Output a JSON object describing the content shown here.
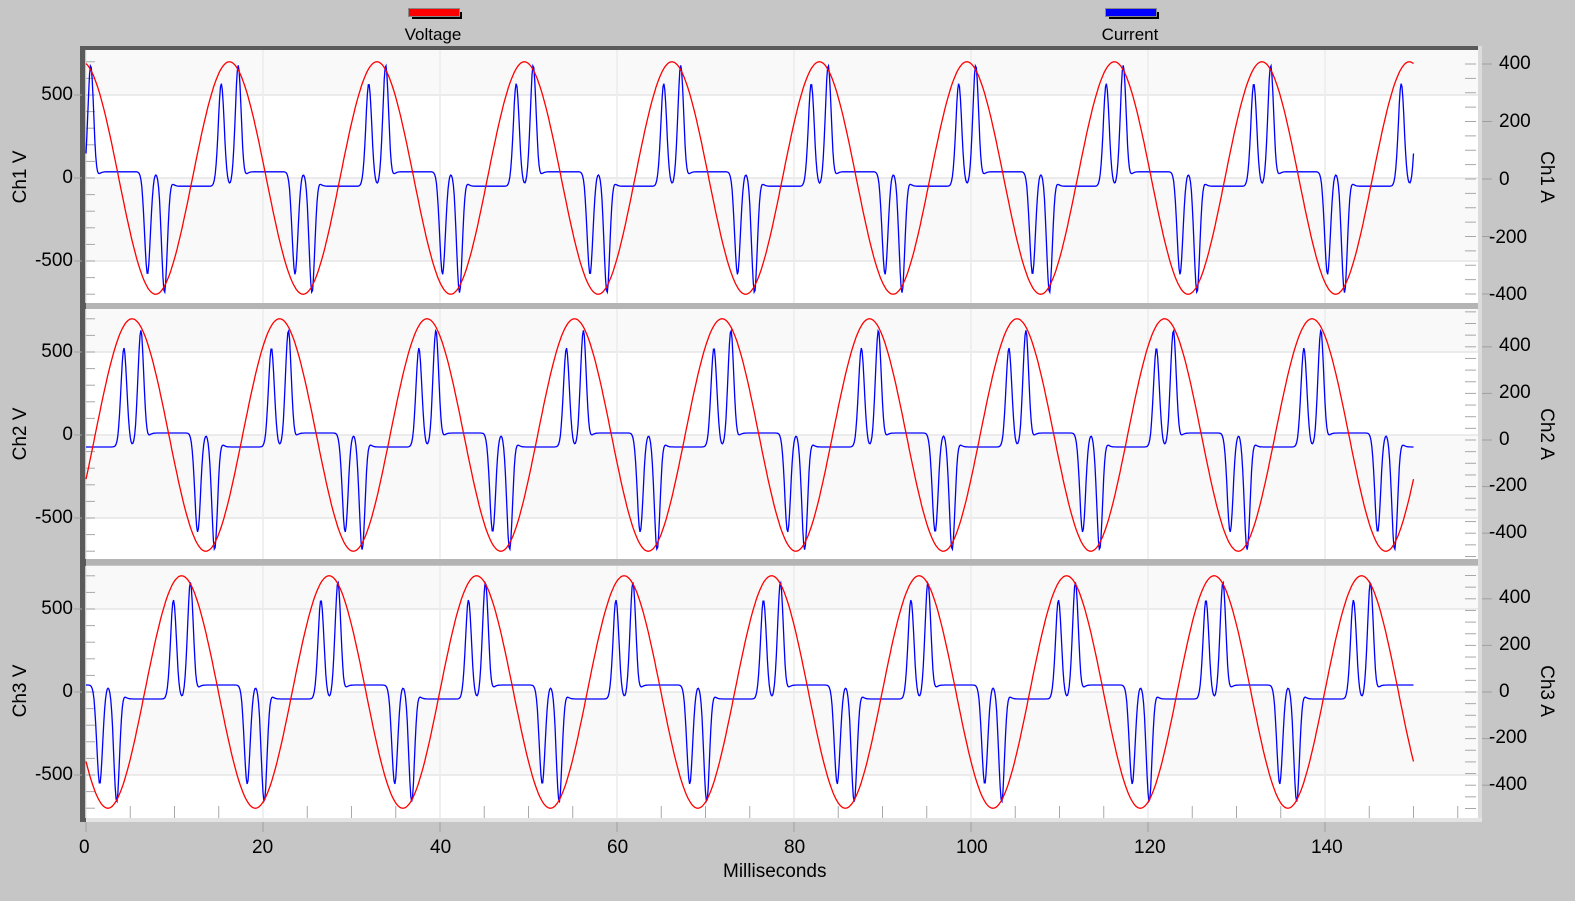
{
  "legend": {
    "items": [
      {
        "label": "Voltage",
        "color": "#ff0000"
      },
      {
        "label": "Current",
        "color": "#0000ff"
      }
    ]
  },
  "xaxis": {
    "label": "Milliseconds",
    "ticks": [
      "0",
      "20",
      "40",
      "60",
      "80",
      "100",
      "120",
      "140"
    ]
  },
  "panels": [
    {
      "left_label": "Ch1 V",
      "right_label": "Ch1 A",
      "left_ticks": [
        "500",
        "0",
        "-500"
      ],
      "right_ticks": [
        "400",
        "200",
        "0",
        "-200",
        "-400"
      ]
    },
    {
      "left_label": "Ch2 V",
      "right_label": "Ch2 A",
      "left_ticks": [
        "500",
        "0",
        "-500"
      ],
      "right_ticks": [
        "400",
        "200",
        "0",
        "-200",
        "-400"
      ]
    },
    {
      "left_label": "Ch3 V",
      "right_label": "Ch3 A",
      "left_ticks": [
        "500",
        "0",
        "-500"
      ],
      "right_ticks": [
        "400",
        "200",
        "0",
        "-200",
        "-400"
      ]
    }
  ],
  "chart_data": {
    "type": "line",
    "title": "",
    "xlabel": "Milliseconds",
    "xlim": [
      0,
      157
    ],
    "x_ticks": [
      0,
      20,
      40,
      60,
      80,
      100,
      120,
      140
    ],
    "data_x_range": [
      0,
      150
    ],
    "legend": [
      "Voltage",
      "Current"
    ],
    "legend_position": "top",
    "grid": true,
    "series_colors": {
      "Voltage": "#ff0000",
      "Current": "#0000ff"
    },
    "panels": [
      {
        "name": "Ch1",
        "ylabel_left": "Ch1 V",
        "ylim_left": [
          -770,
          780
        ],
        "yticks_left": [
          -500,
          0,
          500
        ],
        "ylabel_right": "Ch1 A",
        "ylim_right": [
          -400,
          450
        ],
        "yticks_right": [
          -400,
          -200,
          0,
          200,
          400
        ],
        "voltage": {
          "waveform": "sine",
          "amplitude_V": 700,
          "frequency_Hz": 60,
          "first_peak_ms": 16.2
        },
        "current": {
          "waveform": "double-hump nonlinear load (rectifier)",
          "peak_A": 420,
          "frequency_Hz": 60
        }
      },
      {
        "name": "Ch2",
        "ylabel_left": "Ch2 V",
        "ylim_left": [
          -770,
          780
        ],
        "yticks_left": [
          -500,
          0,
          500
        ],
        "ylabel_right": "Ch2 A",
        "ylim_right": [
          -500,
          550
        ],
        "yticks_right": [
          -400,
          -200,
          0,
          200,
          400
        ],
        "voltage": {
          "waveform": "sine",
          "amplitude_V": 700,
          "frequency_Hz": 60,
          "first_peak_ms": 5.2
        },
        "current": {
          "waveform": "double-hump nonlinear load (rectifier)",
          "peak_A": 500,
          "frequency_Hz": 60
        }
      },
      {
        "name": "Ch3",
        "ylabel_left": "Ch3 V",
        "ylim_left": [
          -770,
          780
        ],
        "yticks_left": [
          -500,
          0,
          500
        ],
        "ylabel_right": "Ch3 A",
        "ylim_right": [
          -500,
          550
        ],
        "yticks_right": [
          -400,
          -200,
          0,
          200,
          400
        ],
        "voltage": {
          "waveform": "sine",
          "amplitude_V": 700,
          "frequency_Hz": 60,
          "first_peak_ms": 10.8
        },
        "current": {
          "waveform": "double-hump nonlinear load (rectifier)",
          "peak_A": 500,
          "frequency_Hz": 60
        }
      }
    ]
  }
}
